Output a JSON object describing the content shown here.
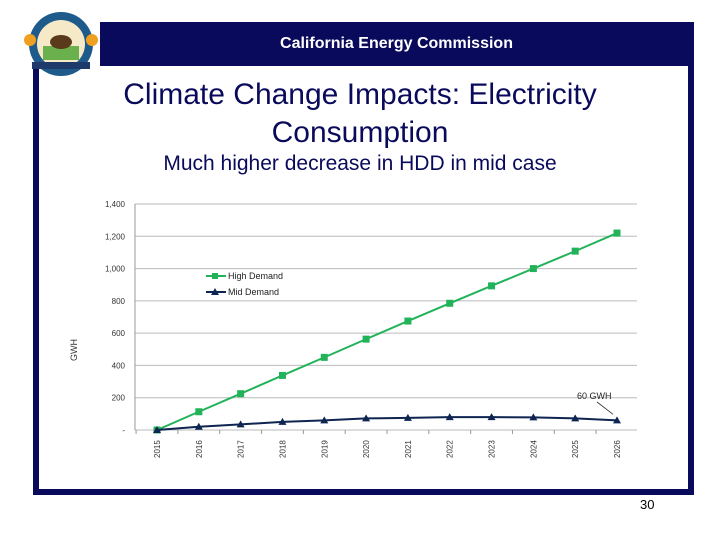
{
  "header": {
    "org": "California Energy Commission",
    "logo_text": "STATE OF CALIFORNIA ENERGY COMMISSION"
  },
  "slide": {
    "title": "Climate Change Impacts: Electricity Consumption",
    "subtitle": "Much higher decrease in HDD in mid case",
    "page_number": "30"
  },
  "chart_data": {
    "type": "line",
    "title": "",
    "xlabel": "",
    "ylabel": "GWH",
    "ylim": [
      0,
      1400
    ],
    "yticks": [
      0,
      200,
      400,
      600,
      800,
      1000,
      1200,
      1400
    ],
    "ytick_labels": [
      "-",
      "200",
      "400",
      "600",
      "800",
      "1,000",
      "1,200",
      "1,400"
    ],
    "categories": [
      "2015",
      "2016",
      "2017",
      "2018",
      "2019",
      "2020",
      "2021",
      "2022",
      "2023",
      "2024",
      "2025",
      "2026"
    ],
    "grid": true,
    "legend_placement": "upper-left",
    "series": [
      {
        "name": "High Demand",
        "color": "#22b35a",
        "marker": "square",
        "values": [
          0,
          113,
          225,
          338,
          450,
          563,
          675,
          785,
          893,
          1000,
          1108,
          1220
        ]
      },
      {
        "name": "Mid Demand",
        "color": "#0d2550",
        "marker": "triangle",
        "values": [
          0,
          20,
          35,
          50,
          60,
          72,
          75,
          80,
          80,
          78,
          72,
          60
        ]
      }
    ],
    "annotation": {
      "text": "60 GWH",
      "x": "2026",
      "y": 60
    }
  }
}
